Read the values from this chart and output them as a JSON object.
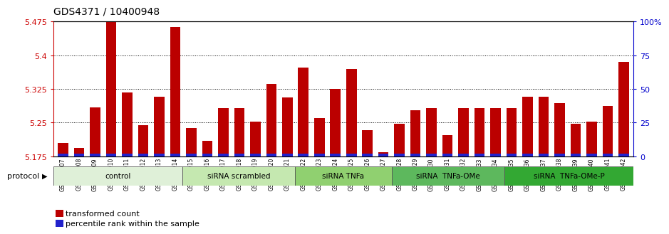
{
  "title": "GDS4371 / 10400948",
  "ylim_left": [
    5.175,
    5.475
  ],
  "ylim_right": [
    0,
    100
  ],
  "yticks_left": [
    5.175,
    5.25,
    5.325,
    5.4,
    5.475
  ],
  "ytick_labels_left": [
    "5.175",
    "5.25",
    "5.325",
    "5.4",
    "5.475"
  ],
  "yticks_right": [
    0,
    25,
    50,
    75,
    100
  ],
  "ytick_labels_right": [
    "0",
    "25",
    "50",
    "75",
    "100%"
  ],
  "samples": [
    "GSM790907",
    "GSM790908",
    "GSM790909",
    "GSM790910",
    "GSM790911",
    "GSM790912",
    "GSM790913",
    "GSM790914",
    "GSM790915",
    "GSM790916",
    "GSM790917",
    "GSM790918",
    "GSM790919",
    "GSM790920",
    "GSM790921",
    "GSM790922",
    "GSM790923",
    "GSM790924",
    "GSM790925",
    "GSM790926",
    "GSM790927",
    "GSM790928",
    "GSM790929",
    "GSM790930",
    "GSM790931",
    "GSM790932",
    "GSM790933",
    "GSM790934",
    "GSM790935",
    "GSM790936",
    "GSM790937",
    "GSM790938",
    "GSM790939",
    "GSM790940",
    "GSM790941",
    "GSM790942"
  ],
  "red_values": [
    5.205,
    5.193,
    5.284,
    5.475,
    5.317,
    5.245,
    5.308,
    5.463,
    5.238,
    5.21,
    5.283,
    5.283,
    5.252,
    5.336,
    5.307,
    5.372,
    5.26,
    5.325,
    5.37,
    5.233,
    5.184,
    5.248,
    5.278,
    5.283,
    5.222,
    5.282,
    5.282,
    5.283,
    5.283,
    5.308,
    5.308,
    5.293,
    5.248,
    5.252,
    5.287,
    5.385
  ],
  "blue_values": [
    1,
    1,
    2,
    5,
    1,
    1,
    2,
    5,
    1,
    1,
    2,
    2,
    1,
    1,
    1,
    2,
    1,
    2,
    1,
    1,
    1,
    1,
    1,
    1,
    1,
    1,
    1,
    1,
    1,
    1,
    1,
    1,
    1,
    1,
    1,
    2
  ],
  "groups": [
    {
      "label": "control",
      "start": 0,
      "end": 8,
      "color": "#dff0d8"
    },
    {
      "label": "siRNA scrambled",
      "start": 8,
      "end": 15,
      "color": "#c5e8b0"
    },
    {
      "label": "siRNA TNFa",
      "start": 15,
      "end": 21,
      "color": "#90d070"
    },
    {
      "label": "siRNA  TNFa-OMe",
      "start": 21,
      "end": 28,
      "color": "#5db85d"
    },
    {
      "label": "siRNA  TNFa-OMe-P",
      "start": 28,
      "end": 36,
      "color": "#33a833"
    }
  ],
  "bar_color": "#bb0000",
  "blue_bar_color": "#2222cc",
  "grid_color": "#000000",
  "title_fontsize": 10,
  "axis_color_left": "#cc0000",
  "axis_color_right": "#0000cc",
  "background_color": "#ffffff"
}
